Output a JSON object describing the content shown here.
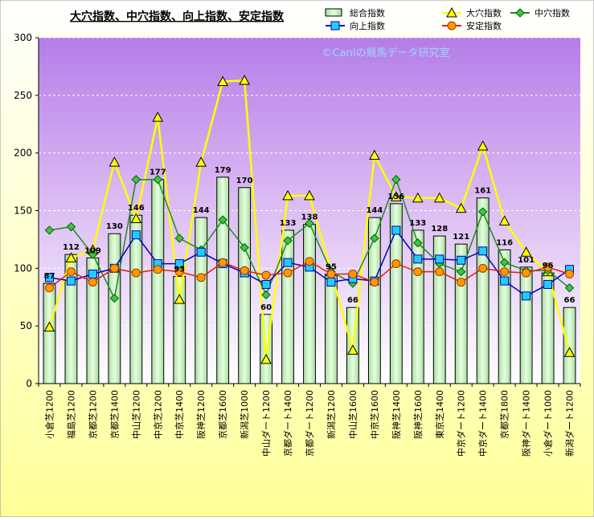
{
  "chart_data": {
    "type": "bar",
    "title": "大穴指数、中穴指数、向上指数、安定指数",
    "watermark": "©Caniの競馬データ研究室",
    "ylim": [
      0,
      300
    ],
    "yticks": [
      0,
      50,
      100,
      150,
      200,
      250,
      300
    ],
    "grid": true,
    "legend_position": "top-right",
    "categories": [
      "小倉芝1200",
      "福島芝1200",
      "京都芝1200",
      "京都芝1400",
      "中山芝1200",
      "中京芝1200",
      "中京芝1400",
      "阪神芝1200",
      "京都芝1600",
      "新潟芝1000",
      "中山ダート1200",
      "京都ダート1400",
      "京都ダート1200",
      "新潟芝1200",
      "中山芝1600",
      "中京芝1600",
      "阪神芝1400",
      "阪神芝1600",
      "東京芝1400",
      "中京ダート1200",
      "中京ダート1400",
      "京都芝1800",
      "阪神ダート1400",
      "小倉ダート1000",
      "新潟ダート1200"
    ],
    "series": [
      {
        "name": "総合指数",
        "kind": "bar",
        "color": "#c8f0c0",
        "values": [
          87,
          112,
          109,
          130,
          146,
          177,
          93,
          144,
          179,
          170,
          60,
          133,
          138,
          95,
          66,
          144,
          156,
          133,
          128,
          121,
          161,
          116,
          101,
          96,
          66
        ]
      },
      {
        "name": "大穴指数",
        "kind": "line",
        "color": "#ffff00",
        "marker": "triangle",
        "values": [
          49,
          109,
          116,
          192,
          143,
          231,
          73,
          192,
          262,
          263,
          21,
          163,
          163,
          97,
          29,
          198,
          162,
          161,
          161,
          152,
          206,
          141,
          114,
          97,
          27
        ]
      },
      {
        "name": "中穴指数",
        "kind": "line",
        "color": "#1e8c1e",
        "marker": "diamond",
        "values": [
          133,
          136,
          112,
          74,
          177,
          177,
          126,
          116,
          142,
          118,
          77,
          124,
          139,
          97,
          87,
          126,
          177,
          122,
          104,
          97,
          149,
          105,
          98,
          98,
          83
        ]
      },
      {
        "name": "向上指数",
        "kind": "line",
        "color": "#0000cc",
        "marker": "square",
        "values": [
          92,
          89,
          95,
          100,
          129,
          104,
          104,
          114,
          104,
          96,
          86,
          105,
          101,
          88,
          91,
          89,
          133,
          108,
          108,
          107,
          115,
          89,
          76,
          86,
          99
        ]
      },
      {
        "name": "安定指数",
        "kind": "line",
        "color": "#dd2200",
        "marker": "circle",
        "values": [
          83,
          97,
          88,
          100,
          96,
          99,
          97,
          92,
          105,
          98,
          94,
          96,
          106,
          95,
          95,
          88,
          104,
          97,
          97,
          88,
          100,
          97,
          96,
          101,
          95
        ]
      }
    ]
  }
}
